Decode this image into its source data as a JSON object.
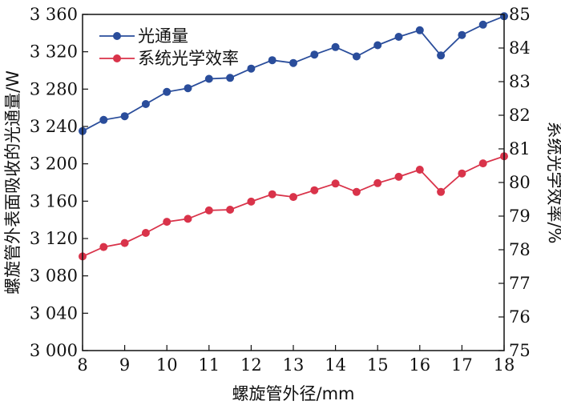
{
  "chart_data": {
    "type": "line",
    "xlabel": "螺旋管外径/mm",
    "ylabel_left": "螺旋管外表面吸收的光通量/W",
    "ylabel_right": "系统光学效率/%",
    "xlim": [
      8,
      18
    ],
    "ylim_left": [
      3000,
      3360
    ],
    "ylim_right": [
      75,
      85
    ],
    "x_ticks": [
      "8",
      "9",
      "10",
      "11",
      "12",
      "13",
      "14",
      "15",
      "16",
      "17",
      "18"
    ],
    "y_left_ticks": [
      "3 000",
      "3 040",
      "3 080",
      "3 120",
      "3 160",
      "3 200",
      "3 240",
      "3 280",
      "3 320",
      "3 360"
    ],
    "y_right_ticks": [
      "75",
      "76",
      "77",
      "78",
      "79",
      "80",
      "81",
      "82",
      "83",
      "84",
      "85"
    ],
    "legend_position": "top-left",
    "grid": false,
    "x": [
      8,
      8.5,
      9,
      9.5,
      10,
      10.5,
      11,
      11.5,
      12,
      12.5,
      13,
      13.5,
      14,
      14.5,
      15,
      15.5,
      16,
      16.5,
      17,
      17.5,
      18
    ],
    "series": [
      {
        "name": "光通量",
        "axis": "left",
        "color": "#2a4d9b",
        "values": [
          3235,
          3247,
          3251,
          3264,
          3277,
          3281,
          3291,
          3292,
          3302,
          3311,
          3308,
          3317,
          3325,
          3315,
          3327,
          3336,
          3343,
          3316,
          3338,
          3349,
          3358
        ]
      },
      {
        "name": "系统光学效率",
        "axis": "right",
        "color": "#d9334a",
        "values": [
          77.8,
          78.08,
          78.2,
          78.5,
          78.83,
          78.92,
          79.17,
          79.19,
          79.43,
          79.65,
          79.57,
          79.77,
          79.97,
          79.72,
          79.98,
          80.17,
          80.38,
          79.72,
          80.27,
          80.57,
          80.78
        ]
      }
    ]
  }
}
